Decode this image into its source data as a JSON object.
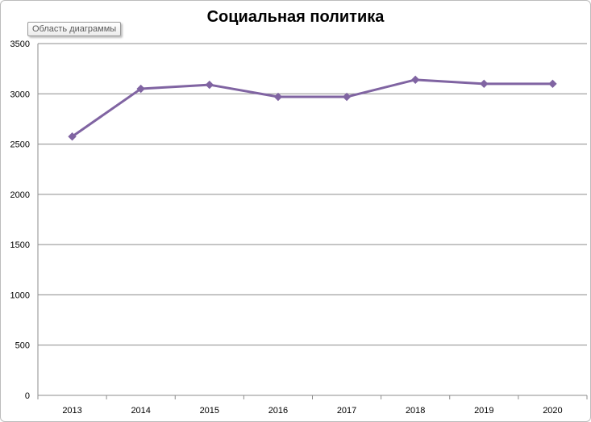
{
  "tooltip": "Область диаграммы",
  "chart_data": {
    "type": "line",
    "title": "Социальная политика",
    "xlabel": "",
    "ylabel": "",
    "categories": [
      "2013",
      "2014",
      "2015",
      "2016",
      "2017",
      "2018",
      "2019",
      "2020"
    ],
    "series": [
      {
        "values": [
          2575,
          3050,
          3090,
          2970,
          2970,
          3140,
          3100,
          3100
        ],
        "color": "#8064a2"
      }
    ],
    "ylim": [
      0,
      3500
    ],
    "yticks": [
      0,
      500,
      1000,
      1500,
      2000,
      2500,
      3000,
      3500
    ],
    "grid": true,
    "legend": "none"
  }
}
